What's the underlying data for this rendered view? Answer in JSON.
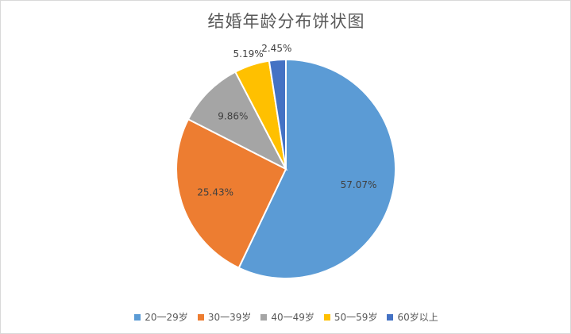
{
  "chart_data": {
    "type": "pie",
    "title": "结婚年龄分布饼状图",
    "categories": [
      "20一29岁",
      "30一39岁",
      "40一49岁",
      "50一59岁",
      "60岁以上"
    ],
    "values": [
      57.07,
      25.43,
      9.86,
      5.19,
      2.45
    ],
    "labels": [
      "57.07%",
      "25.43%",
      "9.86%",
      "5.19%",
      "2.45%"
    ],
    "colors": [
      "#5b9bd5",
      "#ed7d31",
      "#a5a5a5",
      "#ffc000",
      "#4472c4"
    ],
    "legend_position": "bottom",
    "start_angle": "12 o'clock",
    "direction": "clockwise"
  }
}
